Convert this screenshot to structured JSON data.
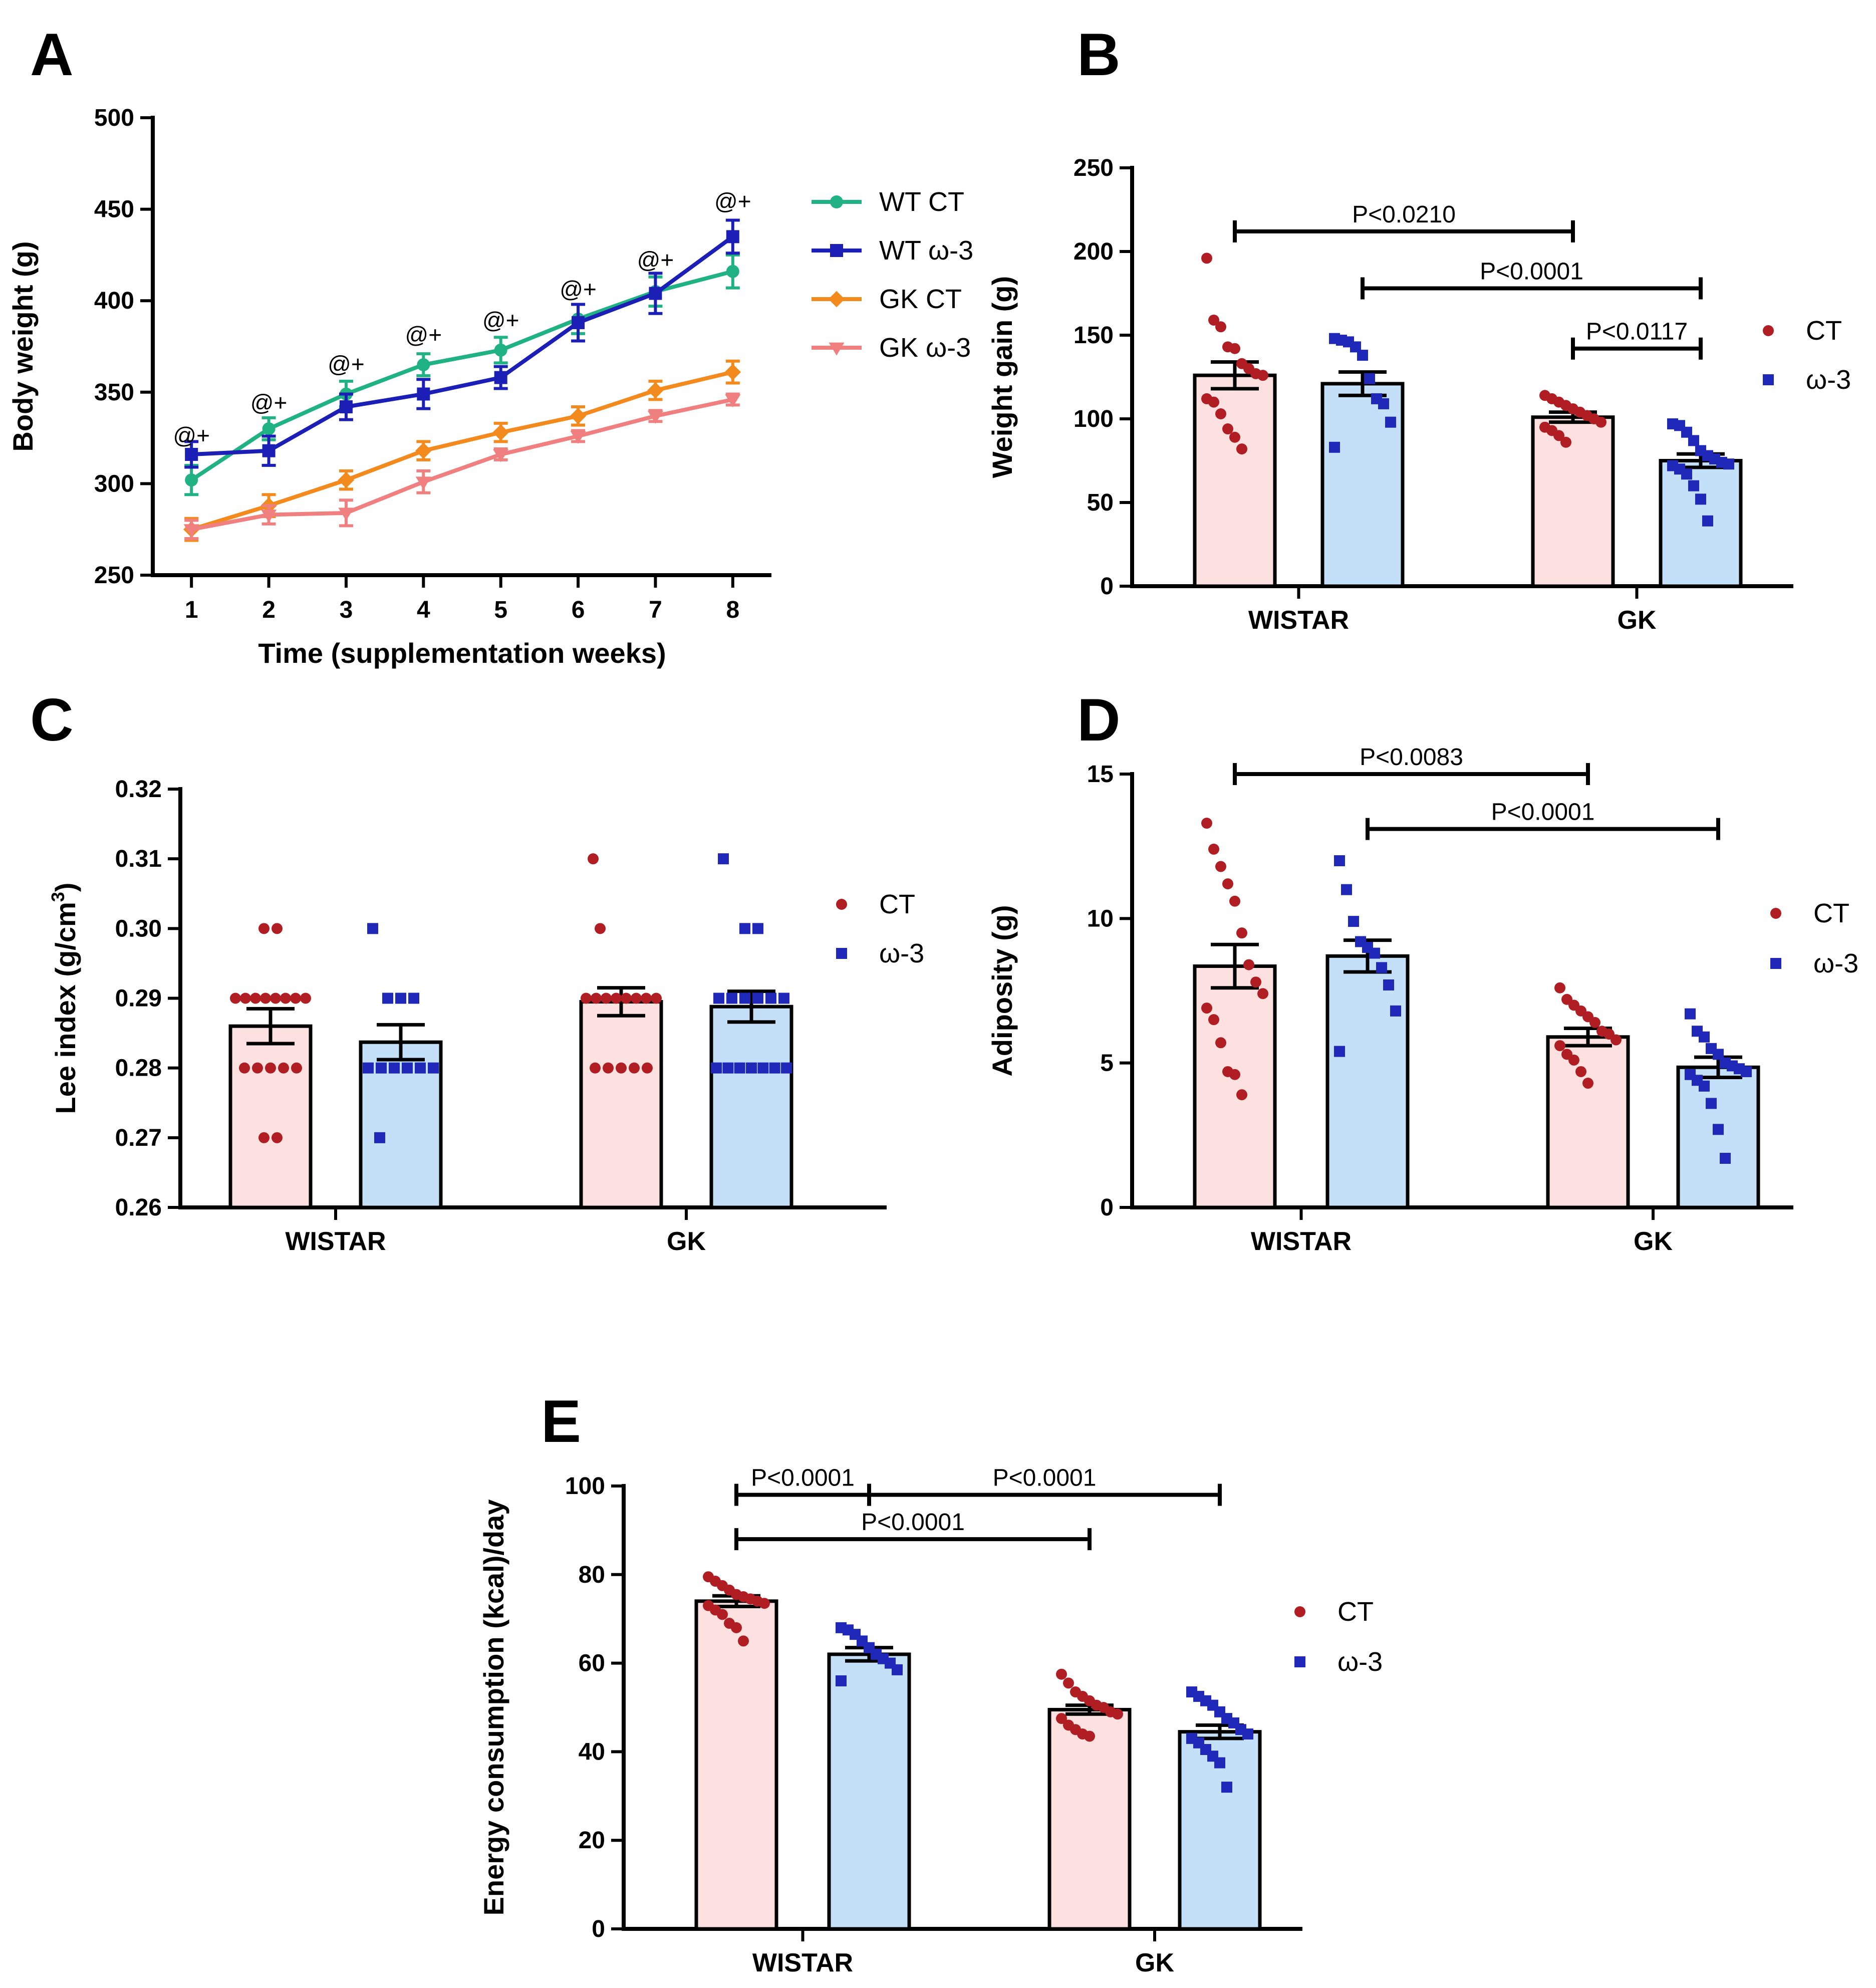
{
  "colors": {
    "ct_fill": "#fde0e0",
    "w3_fill": "#c4e0f8",
    "ct_dot": "#b01e23",
    "w3_dot": "#1f28b8",
    "wt_ct_line": "#20b283",
    "wt_w3_line": "#1c1fb5",
    "gk_ct_line": "#f28a1e",
    "gk_w3_line": "#f08080"
  },
  "chart_data": [
    {
      "id": "A",
      "panel_label": "A",
      "type": "line",
      "xlabel": "Time (supplementation weeks)",
      "ylabel": "Body weight (g)",
      "xlim": [
        0.5,
        8.5
      ],
      "ylim": [
        250,
        500
      ],
      "x_ticks": [
        1,
        2,
        3,
        4,
        5,
        6,
        7,
        8
      ],
      "y_ticks": [
        250,
        300,
        350,
        400,
        450,
        500
      ],
      "x": [
        1,
        2,
        3,
        4,
        5,
        6,
        7,
        8
      ],
      "series": [
        {
          "name": "WT CT",
          "marker": "circle",
          "color": "#20b283",
          "values": [
            302,
            330,
            349,
            365,
            373,
            390,
            405,
            416
          ],
          "sem": [
            8,
            6,
            7,
            6,
            7,
            8,
            8,
            9
          ]
        },
        {
          "name": "WT ω-3",
          "marker": "square",
          "color": "#1c1fb5",
          "values": [
            316,
            318,
            342,
            349,
            358,
            388,
            404,
            435
          ],
          "sem": [
            7,
            8,
            7,
            8,
            6,
            10,
            11,
            9
          ]
        },
        {
          "name": "GK CT",
          "marker": "diamond",
          "color": "#f28a1e",
          "values": [
            275,
            288,
            302,
            318,
            328,
            337,
            351,
            361
          ],
          "sem": [
            6,
            6,
            5,
            5,
            5,
            5,
            5,
            6
          ]
        },
        {
          "name": "GK ω-3",
          "marker": "triangle-down",
          "color": "#f08080",
          "values": [
            275,
            283,
            284,
            301,
            316,
            326,
            337,
            346
          ],
          "sem": [
            5,
            5,
            7,
            6,
            3,
            3,
            3,
            3
          ]
        }
      ],
      "annotations": [
        {
          "x": 1,
          "y": 322,
          "text": "@+"
        },
        {
          "x": 2,
          "y": 340,
          "text": "@+"
        },
        {
          "x": 3,
          "y": 361,
          "text": "@+"
        },
        {
          "x": 4,
          "y": 377,
          "text": "@+"
        },
        {
          "x": 5,
          "y": 385,
          "text": "@+"
        },
        {
          "x": 6,
          "y": 402,
          "text": "@+"
        },
        {
          "x": 7,
          "y": 418,
          "text": "@+"
        },
        {
          "x": 8,
          "y": 450,
          "text": "@+"
        }
      ],
      "legend": {
        "position": "top-right",
        "entries": [
          "WT CT",
          "WT ω-3",
          "GK CT",
          "GK ω-3"
        ]
      }
    },
    {
      "id": "B",
      "panel_label": "B",
      "type": "bar",
      "ylabel": "Weight gain (g)",
      "ylim": [
        0,
        250
      ],
      "y_ticks": [
        0,
        50,
        100,
        150,
        200,
        250
      ],
      "categories": [
        "WISTAR",
        "GK"
      ],
      "series": [
        {
          "name": "CT",
          "marker": "circle",
          "means": [
            126,
            101
          ],
          "sem": [
            8,
            3
          ],
          "points": [
            [
              196,
              159,
              155,
              143,
              142,
              133,
              130,
              127,
              126,
              112,
              110,
              103,
              94,
              89,
              82
            ],
            [
              114,
              112,
              110,
              108,
              106,
              104,
              102,
              100,
              98,
              95,
              93,
              90,
              86
            ]
          ]
        },
        {
          "name": "ω-3",
          "marker": "square",
          "means": [
            121,
            75
          ],
          "sem": [
            7,
            4
          ],
          "points": [
            [
              148,
              147,
              146,
              143,
              138,
              124,
              112,
              109,
              98,
              83
            ],
            [
              97,
              96,
              92,
              87,
              81,
              78,
              76,
              74,
              73,
              72,
              70,
              67,
              60,
              52,
              39
            ]
          ]
        }
      ],
      "comparisons": [
        {
          "text": "P<0.0210",
          "from": "WISTAR CT",
          "to": "GK CT",
          "y": 212
        },
        {
          "text": "P<0.0001",
          "from": "WISTAR ω-3",
          "to": "GK ω-3",
          "y": 178
        },
        {
          "text": "P<0.0117",
          "from": "GK CT",
          "to": "GK ω-3",
          "y": 142
        }
      ],
      "legend": {
        "position": "right",
        "entries": [
          "CT",
          "ω-3"
        ]
      }
    },
    {
      "id": "C",
      "panel_label": "C",
      "type": "bar",
      "ylabel": "Lee index (g/cm",
      "ylabel_sup": "3",
      "ylabel_close": ")",
      "ylim": [
        0.26,
        0.32
      ],
      "y_ticks": [
        "0.26",
        "0.27",
        "0.28",
        "0.29",
        "0.30",
        "0.31",
        "0.32"
      ],
      "categories": [
        "WISTAR",
        "GK"
      ],
      "series": [
        {
          "name": "CT",
          "marker": "circle",
          "means": [
            0.286,
            0.2895
          ],
          "sem": [
            0.0025,
            0.002
          ],
          "points": [
            [
              0.3,
              0.3,
              0.29,
              0.29,
              0.29,
              0.29,
              0.29,
              0.29,
              0.29,
              0.29,
              0.28,
              0.28,
              0.28,
              0.28,
              0.28,
              0.27,
              0.27
            ],
            [
              0.31,
              0.3,
              0.29,
              0.29,
              0.29,
              0.29,
              0.29,
              0.29,
              0.29,
              0.29,
              0.28,
              0.28,
              0.28,
              0.28,
              0.28
            ]
          ]
        },
        {
          "name": "ω-3",
          "marker": "square",
          "means": [
            0.2837,
            0.2888
          ],
          "sem": [
            0.0025,
            0.0022
          ],
          "points": [
            [
              0.3,
              0.29,
              0.29,
              0.29,
              0.28,
              0.28,
              0.28,
              0.28,
              0.28,
              0.28,
              0.27
            ],
            [
              0.31,
              0.3,
              0.3,
              0.29,
              0.29,
              0.29,
              0.29,
              0.29,
              0.29,
              0.28,
              0.28,
              0.28,
              0.28,
              0.28,
              0.28,
              0.28
            ]
          ]
        }
      ],
      "comparisons": [],
      "legend": {
        "position": "top-right",
        "entries": [
          "CT",
          "ω-3"
        ]
      }
    },
    {
      "id": "D",
      "panel_label": "D",
      "type": "bar",
      "ylabel": "Adiposity (g)",
      "ylim": [
        0,
        15
      ],
      "y_ticks": [
        0,
        5,
        10,
        15
      ],
      "categories": [
        "WISTAR",
        "GK"
      ],
      "series": [
        {
          "name": "CT",
          "marker": "circle",
          "means": [
            8.35,
            5.9
          ],
          "sem": [
            0.75,
            0.3
          ],
          "points": [
            [
              13.3,
              12.4,
              11.8,
              11.2,
              10.6,
              9.5,
              8.4,
              7.8,
              7.4,
              6.9,
              6.5,
              5.7,
              4.7,
              4.6,
              3.9
            ],
            [
              7.6,
              7.2,
              7.0,
              6.8,
              6.6,
              6.4,
              6.1,
              6.0,
              5.8,
              5.6,
              5.3,
              5.1,
              4.7,
              4.3
            ]
          ]
        },
        {
          "name": "ω-3",
          "marker": "square",
          "means": [
            8.7,
            4.85
          ],
          "sem": [
            0.55,
            0.35
          ],
          "points": [
            [
              12.0,
              11.0,
              9.9,
              9.2,
              9.0,
              8.8,
              8.3,
              7.7,
              6.8,
              5.4
            ],
            [
              6.7,
              6.1,
              5.9,
              5.5,
              5.3,
              5.0,
              4.9,
              4.8,
              4.7,
              4.6,
              4.4,
              4.2,
              3.6,
              2.7,
              1.7
            ]
          ]
        }
      ],
      "comparisons": [
        {
          "text": "P<0.0083",
          "from": "WISTAR CT",
          "to": "GK CT",
          "y": 15.0
        },
        {
          "text": "P<0.0001",
          "from": "WISTAR ω-3",
          "to": "GK ω-3",
          "y": 13.1
        }
      ],
      "legend": {
        "position": "right",
        "entries": [
          "CT",
          "ω-3"
        ]
      }
    },
    {
      "id": "E",
      "panel_label": "E",
      "type": "bar",
      "ylabel": "Energy consumption (kcal)/day",
      "ylim": [
        0,
        100
      ],
      "y_ticks": [
        0,
        20,
        40,
        60,
        80,
        100
      ],
      "categories": [
        "WISTAR",
        "GK"
      ],
      "series": [
        {
          "name": "CT",
          "marker": "circle",
          "means": [
            74,
            49.5
          ],
          "sem": [
            1.2,
            1.0
          ],
          "points": [
            [
              79.5,
              78.5,
              77.5,
              76.5,
              75.5,
              75,
              74.5,
              74,
              73.5,
              73,
              72,
              71,
              69,
              68,
              65
            ],
            [
              57.5,
              55.5,
              53.5,
              52.5,
              51.5,
              50.5,
              50,
              49,
              48.5,
              47.5,
              46,
              45,
              44,
              43.5
            ]
          ]
        },
        {
          "name": "ω-3",
          "marker": "square",
          "means": [
            62,
            44.5
          ],
          "sem": [
            1.5,
            1.5
          ],
          "points": [
            [
              68,
              67.5,
              66.5,
              65,
              63.5,
              62,
              61,
              60,
              58.5,
              56
            ],
            [
              53.5,
              52.5,
              51.5,
              50.5,
              49,
              47.5,
              46.5,
              45,
              44,
              43,
              42,
              40.5,
              39,
              37.5,
              32
            ]
          ]
        }
      ],
      "comparisons": [
        {
          "text": "P<0.0001",
          "from": "WISTAR CT",
          "to": "WISTAR ω-3",
          "y": 98
        },
        {
          "text": "P<0.0001",
          "from": "WISTAR ω-3",
          "to": "GK ω-3",
          "y": 98
        },
        {
          "text": "P<0.0001",
          "from": "WISTAR CT",
          "to": "GK CT",
          "y": 88
        }
      ],
      "legend": {
        "position": "right",
        "entries": [
          "CT",
          "ω-3"
        ]
      }
    }
  ]
}
